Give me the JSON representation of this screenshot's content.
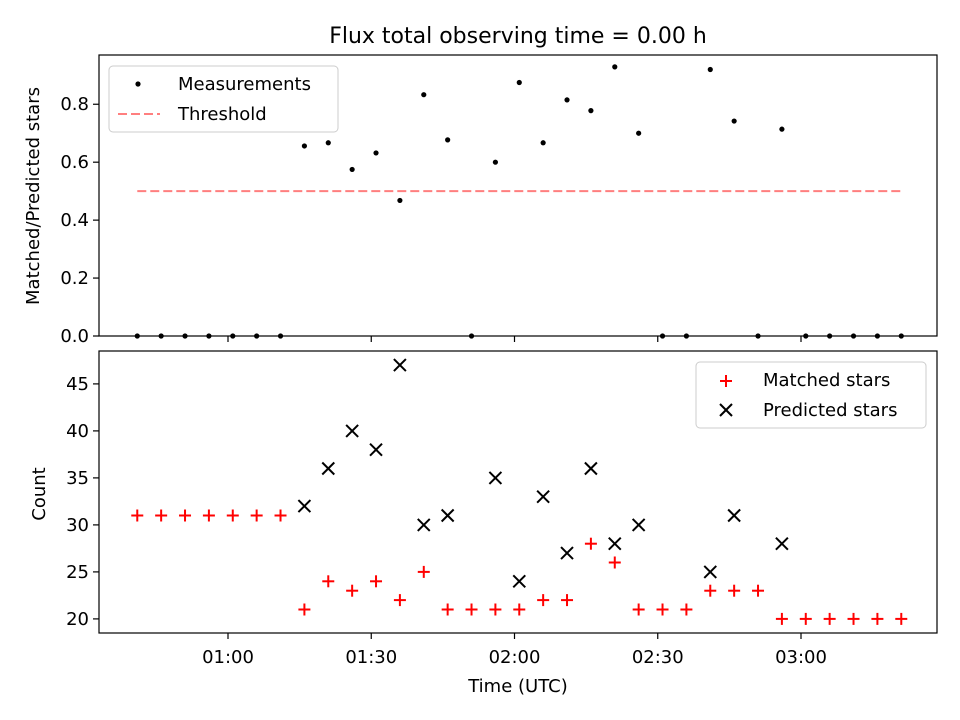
{
  "chart_data": {
    "type": "scatter",
    "title": "Flux total observing time = 0.00 h",
    "xlabel": "Time (UTC)",
    "x_tick_labels": [
      {
        "minutes": 60,
        "label": "01:00"
      },
      {
        "minutes": 90,
        "label": "01:30"
      },
      {
        "minutes": 120,
        "label": "02:00"
      },
      {
        "minutes": 150,
        "label": "02:30"
      },
      {
        "minutes": 180,
        "label": "03:00"
      }
    ],
    "x_minutes": [
      41,
      46,
      51,
      56,
      61,
      66,
      71,
      76,
      81,
      86,
      91,
      96,
      101,
      106,
      111,
      116,
      121,
      126,
      131,
      136,
      141,
      146,
      151,
      156,
      161,
      166,
      171,
      176,
      181,
      186,
      191,
      196,
      201
    ],
    "top_panel": {
      "ylabel": "Matched/Predicted stars",
      "ylim": [
        0,
        0.97
      ],
      "y_ticks": [
        "0.0",
        "0.2",
        "0.4",
        "0.6",
        "0.8"
      ],
      "legend": {
        "position": "upper-left",
        "entries": [
          "Measurements",
          "Threshold"
        ]
      },
      "series": [
        {
          "name": "Measurements",
          "marker": "dot",
          "color": "#000000",
          "values": [
            0,
            0,
            0,
            0,
            0,
            0,
            0,
            0.656,
            0.667,
            0.575,
            0.632,
            0.468,
            0.833,
            0.677,
            0,
            0.6,
            0.875,
            0.667,
            0.815,
            0.778,
            0.929,
            0.7,
            0,
            0,
            0.92,
            0.742,
            0,
            0.714,
            0,
            0,
            0,
            0,
            0
          ]
        },
        {
          "name": "Threshold",
          "style": "dashed",
          "color": "#ff7f7f",
          "value": 0.5,
          "x_range": [
            41,
            201
          ]
        }
      ]
    },
    "bottom_panel": {
      "ylabel": "Count",
      "ylim": [
        18.5,
        48.5
      ],
      "y_ticks": [
        "20",
        "25",
        "30",
        "35",
        "40",
        "45"
      ],
      "legend": {
        "position": "upper-right",
        "entries": [
          "Matched stars",
          "Predicted stars"
        ]
      },
      "series": [
        {
          "name": "Matched stars",
          "marker": "plus",
          "color": "#ff0000",
          "values": [
            31,
            31,
            31,
            31,
            31,
            31,
            31,
            21,
            24,
            23,
            24,
            22,
            25,
            21,
            21,
            21,
            21,
            22,
            22,
            28,
            26,
            21,
            21,
            21,
            23,
            23,
            23,
            20,
            20,
            20,
            20,
            20,
            20
          ]
        },
        {
          "name": "Predicted stars",
          "marker": "x",
          "color": "#000000",
          "values": [
            null,
            null,
            null,
            null,
            null,
            null,
            null,
            32,
            36,
            40,
            38,
            47,
            30,
            31,
            null,
            35,
            24,
            33,
            27,
            36,
            28,
            30,
            null,
            null,
            25,
            31,
            null,
            28,
            null,
            null,
            null,
            null,
            null
          ]
        }
      ]
    }
  }
}
